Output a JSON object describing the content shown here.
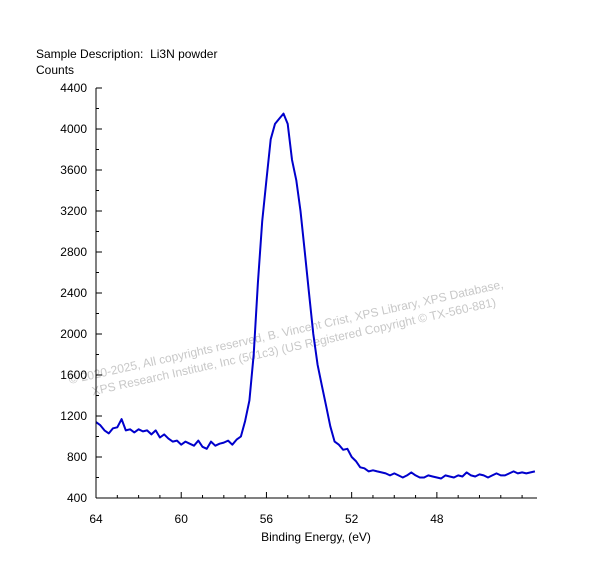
{
  "header": {
    "sample_label": "Sample Description:",
    "sample_value": "Li3N powder",
    "y_axis_title": "Counts"
  },
  "watermark": {
    "line1": "© 2020-2025,  All copyrights reserved,  B. Vincent Crist,  XPS Library, XPS Database,",
    "line2": "XPS Research Institute, Inc (501c3)   (US Registered Copyright © TX-560-881)"
  },
  "chart_data": {
    "type": "line",
    "xlabel": "Binding Energy, (eV)",
    "ylabel": "Counts",
    "x_reversed": true,
    "xlim": [
      64,
      43.3
    ],
    "ylim": [
      400,
      4400
    ],
    "x_ticks": [
      64,
      60,
      56,
      52,
      48
    ],
    "y_ticks": [
      400,
      800,
      1200,
      1600,
      2000,
      2400,
      2800,
      3200,
      3600,
      4000,
      4400
    ],
    "line_color": "#0000cc",
    "series": [
      {
        "x": [
          64.0,
          63.8,
          63.6,
          63.4,
          63.2,
          63.0,
          62.8,
          62.6,
          62.4,
          62.2,
          62.0,
          61.8,
          61.6,
          61.4,
          61.2,
          61.0,
          60.8,
          60.6,
          60.4,
          60.2,
          60.0,
          59.8,
          59.6,
          59.4,
          59.2,
          59.0,
          58.8,
          58.6,
          58.4,
          58.2,
          58.0,
          57.8,
          57.6,
          57.4,
          57.2,
          57.0,
          56.8,
          56.6,
          56.4,
          56.2,
          56.0,
          55.8,
          55.6,
          55.4,
          55.2,
          55.0,
          54.8,
          54.6,
          54.4,
          54.2,
          54.0,
          53.8,
          53.6,
          53.4,
          53.2,
          53.0,
          52.8,
          52.6,
          52.4,
          52.2,
          52.0,
          51.8,
          51.6,
          51.4,
          51.2,
          51.0,
          50.8,
          50.6,
          50.4,
          50.2,
          50.0,
          49.8,
          49.6,
          49.4,
          49.2,
          49.0,
          48.8,
          48.6,
          48.4,
          48.2,
          48.0,
          47.8,
          47.6,
          47.4,
          47.2,
          47.0,
          46.8,
          46.6,
          46.4,
          46.2,
          46.0,
          45.8,
          45.6,
          45.4,
          45.2,
          45.0,
          44.8,
          44.6,
          44.4,
          44.2,
          44.0,
          43.8,
          43.6,
          43.4
        ],
        "y": [
          1140,
          1110,
          1060,
          1030,
          1080,
          1090,
          1170,
          1060,
          1070,
          1040,
          1070,
          1050,
          1060,
          1020,
          1060,
          990,
          1020,
          980,
          950,
          960,
          920,
          950,
          930,
          910,
          960,
          900,
          880,
          950,
          910,
          930,
          940,
          960,
          920,
          970,
          1000,
          1150,
          1350,
          1800,
          2500,
          3100,
          3500,
          3900,
          4050,
          4100,
          4150,
          4050,
          3700,
          3500,
          3200,
          2800,
          2400,
          2000,
          1700,
          1500,
          1300,
          1100,
          950,
          920,
          870,
          880,
          800,
          760,
          700,
          690,
          660,
          670,
          660,
          650,
          640,
          620,
          640,
          620,
          600,
          620,
          650,
          620,
          600,
          600,
          620,
          610,
          600,
          590,
          620,
          610,
          600,
          620,
          610,
          650,
          620,
          610,
          630,
          620,
          600,
          620,
          640,
          620,
          620,
          640,
          660,
          640,
          650,
          640,
          650,
          660
        ]
      }
    ]
  }
}
